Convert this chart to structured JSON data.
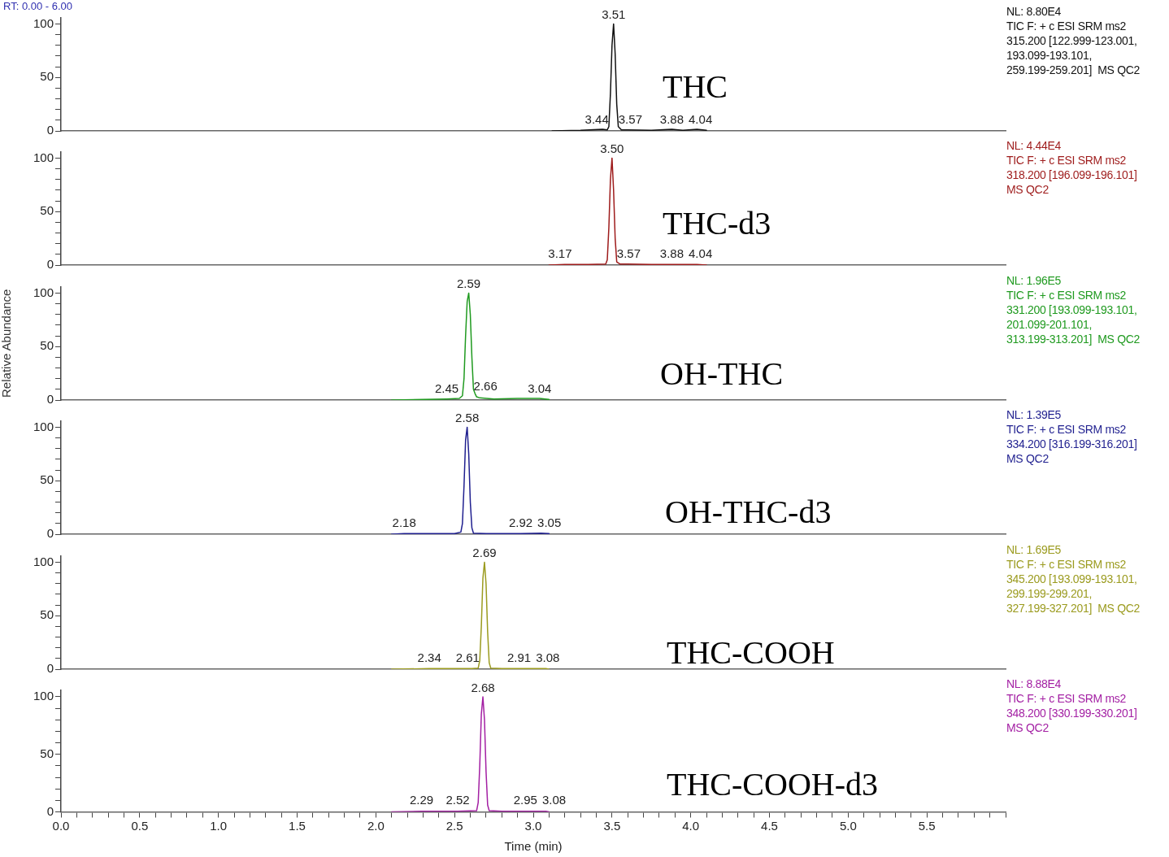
{
  "chart_data": [
    {
      "type": "line",
      "legend": false,
      "grid": false,
      "tick_labels": "y",
      "xlim": [
        0,
        6
      ],
      "ylim": [
        0,
        106
      ],
      "yticks": [
        0,
        {
          "value": 10,
          "label": null
        },
        {
          "value": 20,
          "label": null
        },
        {
          "value": 30,
          "label": null
        },
        {
          "value": 40,
          "label": null
        },
        50,
        {
          "value": 60,
          "label": null
        },
        {
          "value": 70,
          "label": null
        },
        {
          "value": 80,
          "label": null
        },
        {
          "value": 90,
          "label": null
        },
        100
      ],
      "series": [
        {
          "color": "#111111",
          "x": [
            3.12,
            3.3,
            3.44,
            3.47,
            3.48,
            3.49,
            3.5,
            3.51,
            3.52,
            3.53,
            3.54,
            3.56,
            3.6,
            3.75,
            3.88,
            3.95,
            4.04,
            4.1
          ],
          "values": [
            0,
            0.5,
            1.5,
            1,
            4,
            35,
            80,
            100,
            72,
            25,
            4,
            1,
            1,
            0.5,
            1.5,
            0.5,
            1.5,
            0.5
          ]
        }
      ],
      "annotations": [
        "THC",
        "NL: 8.80E4",
        "TIC F: + c ESI SRM ms2\n315.200 [122.999-123.001,\n193.099-193.101,\n259.199-259.201]  MS QC2",
        "RT: 0.00 - 6.00",
        {
          "text": "3.51",
          "x": 3.51,
          "y": 100
        },
        {
          "text": "3.44",
          "x": 3.44,
          "y": 2
        },
        {
          "text": "3.57",
          "x": 3.57,
          "y": 2
        },
        {
          "text": "3.88",
          "x": 3.88,
          "y": 2
        },
        {
          "text": "4.04",
          "x": 4.04,
          "y": 2
        }
      ]
    },
    {
      "type": "line",
      "legend": false,
      "grid": false,
      "tick_labels": "y",
      "xlim": [
        0,
        6
      ],
      "ylim": [
        0,
        106
      ],
      "yticks": [
        0,
        {
          "value": 10,
          "label": null
        },
        {
          "value": 20,
          "label": null
        },
        {
          "value": 30,
          "label": null
        },
        {
          "value": 40,
          "label": null
        },
        50,
        {
          "value": 60,
          "label": null
        },
        {
          "value": 70,
          "label": null
        },
        {
          "value": 80,
          "label": null
        },
        {
          "value": 90,
          "label": null
        },
        100
      ],
      "series": [
        {
          "color": "#9e1b1b",
          "x": [
            3.1,
            3.2,
            3.35,
            3.46,
            3.47,
            3.48,
            3.49,
            3.5,
            3.51,
            3.52,
            3.53,
            3.55,
            3.6,
            3.75,
            3.88,
            4.04,
            4.1
          ],
          "values": [
            0,
            0.5,
            0.5,
            1,
            5,
            35,
            80,
            100,
            70,
            25,
            3,
            1,
            1,
            0.5,
            0.5,
            0.5,
            0
          ]
        }
      ],
      "annotations": [
        "THC-d3",
        "NL: 4.44E4",
        "TIC F: + c ESI SRM ms2\n318.200 [196.099-196.101]\nMS QC2",
        {
          "text": "3.50",
          "x": 3.5,
          "y": 100
        },
        {
          "text": "3.17",
          "x": 3.17,
          "y": 2
        },
        {
          "text": "3.57",
          "x": 3.57,
          "y": 2
        },
        {
          "text": "3.88",
          "x": 3.88,
          "y": 2
        },
        {
          "text": "4.04",
          "x": 4.04,
          "y": 2
        }
      ]
    },
    {
      "type": "line",
      "legend": false,
      "grid": false,
      "tick_labels": "y",
      "xlim": [
        0,
        6
      ],
      "ylim": [
        0,
        106
      ],
      "ylabel": "Relative Abundance",
      "yticks": [
        0,
        {
          "value": 10,
          "label": null
        },
        {
          "value": 20,
          "label": null
        },
        {
          "value": 30,
          "label": null
        },
        {
          "value": 40,
          "label": null
        },
        50,
        {
          "value": 60,
          "label": null
        },
        {
          "value": 70,
          "label": null
        },
        {
          "value": 80,
          "label": null
        },
        {
          "value": 90,
          "label": null
        },
        100
      ],
      "series": [
        {
          "color": "#1f9a1f",
          "x": [
            2.1,
            2.3,
            2.45,
            2.53,
            2.55,
            2.56,
            2.57,
            2.58,
            2.59,
            2.6,
            2.61,
            2.62,
            2.63,
            2.64,
            2.66,
            2.75,
            2.9,
            3.04,
            3.1
          ],
          "values": [
            0,
            0.5,
            1,
            1.5,
            4,
            20,
            60,
            92,
            100,
            80,
            40,
            10,
            6,
            3,
            2,
            1,
            1.5,
            1.5,
            0.5
          ]
        }
      ],
      "annotations": [
        "OH-THC",
        "NL: 1.96E5",
        "TIC F: + c ESI SRM ms2\n331.200 [193.099-193.101,\n201.099-201.101,\n313.199-313.201]  MS QC2",
        {
          "text": "2.59",
          "x": 2.59,
          "y": 100
        },
        {
          "text": "2.45",
          "x": 2.45,
          "y": 2
        },
        {
          "text": "2.66",
          "x": 2.66,
          "y": 4
        },
        {
          "text": "3.04",
          "x": 3.04,
          "y": 2
        }
      ]
    },
    {
      "type": "line",
      "legend": false,
      "grid": false,
      "tick_labels": "y",
      "xlim": [
        0,
        6
      ],
      "ylim": [
        0,
        106
      ],
      "yticks": [
        0,
        {
          "value": 10,
          "label": null
        },
        {
          "value": 20,
          "label": null
        },
        {
          "value": 30,
          "label": null
        },
        {
          "value": 40,
          "label": null
        },
        50,
        {
          "value": 60,
          "label": null
        },
        {
          "value": 70,
          "label": null
        },
        {
          "value": 80,
          "label": null
        },
        {
          "value": 90,
          "label": null
        },
        100
      ],
      "series": [
        {
          "color": "#1f1f8f",
          "x": [
            2.1,
            2.18,
            2.3,
            2.5,
            2.54,
            2.55,
            2.56,
            2.57,
            2.58,
            2.59,
            2.6,
            2.61,
            2.62,
            2.7,
            2.92,
            3.05,
            3.1
          ],
          "values": [
            0,
            0.5,
            0.5,
            0.5,
            2,
            10,
            45,
            88,
            100,
            75,
            30,
            6,
            1,
            0.5,
            0.5,
            1,
            0.5
          ]
        }
      ],
      "annotations": [
        "OH-THC-d3",
        "NL: 1.39E5",
        "TIC F: + c ESI SRM ms2\n334.200 [316.199-316.201]\nMS QC2",
        {
          "text": "2.58",
          "x": 2.58,
          "y": 100
        },
        {
          "text": "2.18",
          "x": 2.18,
          "y": 2
        },
        {
          "text": "2.92",
          "x": 2.92,
          "y": 2
        },
        {
          "text": "3.05",
          "x": 3.05,
          "y": 2
        }
      ]
    },
    {
      "type": "line",
      "legend": false,
      "grid": false,
      "tick_labels": "y",
      "xlim": [
        0,
        6
      ],
      "ylim": [
        0,
        106
      ],
      "yticks": [
        0,
        {
          "value": 10,
          "label": null
        },
        {
          "value": 20,
          "label": null
        },
        {
          "value": 30,
          "label": null
        },
        {
          "value": 40,
          "label": null
        },
        50,
        {
          "value": 60,
          "label": null
        },
        {
          "value": 70,
          "label": null
        },
        {
          "value": 80,
          "label": null
        },
        {
          "value": 90,
          "label": null
        },
        100
      ],
      "series": [
        {
          "color": "#9b9b1f",
          "x": [
            2.1,
            2.34,
            2.5,
            2.61,
            2.65,
            2.66,
            2.67,
            2.68,
            2.69,
            2.7,
            2.71,
            2.72,
            2.73,
            2.8,
            2.91,
            3.08,
            3.1
          ],
          "values": [
            0,
            0.5,
            0.5,
            0.5,
            1,
            8,
            40,
            85,
            100,
            80,
            35,
            6,
            1,
            0.5,
            0.5,
            0.5,
            0
          ]
        }
      ],
      "annotations": [
        "THC-COOH",
        "NL: 1.69E5",
        "TIC F: + c ESI SRM ms2\n345.200 [193.099-193.101,\n299.199-299.201,\n327.199-327.201]  MS QC2",
        {
          "text": "2.69",
          "x": 2.69,
          "y": 100
        },
        {
          "text": "2.34",
          "x": 2.34,
          "y": 2
        },
        {
          "text": "2.61",
          "x": 2.61,
          "y": 2
        },
        {
          "text": "2.91",
          "x": 2.91,
          "y": 2
        },
        {
          "text": "3.08",
          "x": 3.08,
          "y": 2
        }
      ]
    },
    {
      "type": "line",
      "legend": false,
      "grid": false,
      "xlim": [
        0,
        6
      ],
      "ylim": [
        0,
        106
      ],
      "xlabel": "Time (min)",
      "xticks": [
        {
          "value": 0,
          "label": "0.0"
        },
        {
          "value": 0.1,
          "label": null
        },
        {
          "value": 0.2,
          "label": null
        },
        {
          "value": 0.3,
          "label": null
        },
        {
          "value": 0.4,
          "label": null
        },
        0.5,
        {
          "value": 0.6,
          "label": null
        },
        {
          "value": 0.7,
          "label": null
        },
        {
          "value": 0.8,
          "label": null
        },
        {
          "value": 0.9,
          "label": null
        },
        {
          "value": 1,
          "label": "1.0"
        },
        {
          "value": 1.1,
          "label": null
        },
        {
          "value": 1.2,
          "label": null
        },
        {
          "value": 1.3,
          "label": null
        },
        {
          "value": 1.4,
          "label": null
        },
        1.5,
        {
          "value": 1.6,
          "label": null
        },
        {
          "value": 1.7,
          "label": null
        },
        {
          "value": 1.8,
          "label": null
        },
        {
          "value": 1.9,
          "label": null
        },
        {
          "value": 2,
          "label": "2.0"
        },
        {
          "value": 2.1,
          "label": null
        },
        {
          "value": 2.2,
          "label": null
        },
        {
          "value": 2.3,
          "label": null
        },
        {
          "value": 2.4,
          "label": null
        },
        2.5,
        {
          "value": 2.6,
          "label": null
        },
        {
          "value": 2.7,
          "label": null
        },
        {
          "value": 2.8,
          "label": null
        },
        {
          "value": 2.9,
          "label": null
        },
        {
          "value": 3,
          "label": "3.0"
        },
        {
          "value": 3.1,
          "label": null
        },
        {
          "value": 3.2,
          "label": null
        },
        {
          "value": 3.3,
          "label": null
        },
        {
          "value": 3.4,
          "label": null
        },
        3.5,
        {
          "value": 3.6,
          "label": null
        },
        {
          "value": 3.7,
          "label": null
        },
        {
          "value": 3.8,
          "label": null
        },
        {
          "value": 3.9,
          "label": null
        },
        {
          "value": 4,
          "label": "4.0"
        },
        {
          "value": 4.1,
          "label": null
        },
        {
          "value": 4.2,
          "label": null
        },
        {
          "value": 4.3,
          "label": null
        },
        {
          "value": 4.4,
          "label": null
        },
        4.5,
        {
          "value": 4.6,
          "label": null
        },
        {
          "value": 4.7,
          "label": null
        },
        {
          "value": 4.8,
          "label": null
        },
        {
          "value": 4.9,
          "label": null
        },
        {
          "value": 5,
          "label": "5.0"
        },
        {
          "value": 5.1,
          "label": null
        },
        {
          "value": 5.2,
          "label": null
        },
        {
          "value": 5.3,
          "label": null
        },
        {
          "value": 5.4,
          "label": null
        },
        5.5,
        {
          "value": 5.6,
          "label": null
        },
        {
          "value": 5.7,
          "label": null
        },
        {
          "value": 5.8,
          "label": null
        },
        {
          "value": 5.9,
          "label": null
        },
        {
          "value": 6,
          "label": null
        }
      ],
      "yticks": [
        0,
        {
          "value": 10,
          "label": null
        },
        {
          "value": 20,
          "label": null
        },
        {
          "value": 30,
          "label": null
        },
        {
          "value": 40,
          "label": null
        },
        50,
        {
          "value": 60,
          "label": null
        },
        {
          "value": 70,
          "label": null
        },
        {
          "value": 80,
          "label": null
        },
        {
          "value": 90,
          "label": null
        },
        100
      ],
      "series": [
        {
          "color": "#a31fa3",
          "x": [
            2.1,
            2.29,
            2.4,
            2.52,
            2.64,
            2.65,
            2.66,
            2.67,
            2.68,
            2.69,
            2.7,
            2.71,
            2.72,
            2.8,
            2.95,
            3.08,
            3.1
          ],
          "values": [
            0,
            0.5,
            0.5,
            0.5,
            1,
            8,
            40,
            85,
            100,
            80,
            35,
            6,
            1,
            0.5,
            0.5,
            0.5,
            0
          ]
        }
      ],
      "annotations": [
        "THC-COOH-d3",
        "NL: 8.88E4",
        "TIC F: + c ESI SRM ms2\n348.200 [330.199-330.201]\nMS QC2",
        {
          "text": "2.68",
          "x": 2.68,
          "y": 100
        },
        {
          "text": "2.29",
          "x": 2.29,
          "y": 2
        },
        {
          "text": "2.52",
          "x": 2.52,
          "y": 2
        },
        {
          "text": "2.95",
          "x": 2.95,
          "y": 2
        },
        {
          "text": "3.08",
          "x": 3.08,
          "y": 2
        }
      ]
    }
  ]
}
